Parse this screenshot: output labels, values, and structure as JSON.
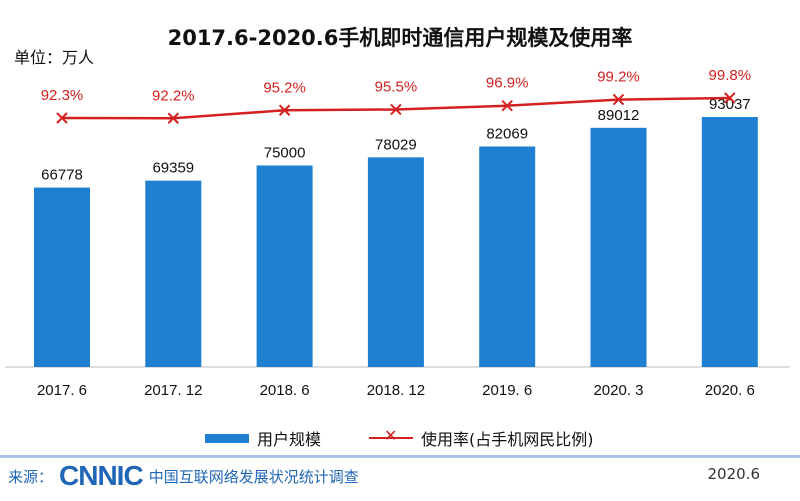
{
  "chart_data": {
    "type": "bar",
    "title": "2017.6-2020.6手机即时通信用户规模及使用率",
    "unit_label": "单位：万人",
    "categories": [
      "2017. 6",
      "2017. 12",
      "2018. 6",
      "2018. 12",
      "2019. 6",
      "2020. 3",
      "2020. 6"
    ],
    "series": [
      {
        "name": "用户规模",
        "type": "bar",
        "values": [
          66778,
          69359,
          75000,
          78029,
          82069,
          89012,
          93037
        ],
        "color": "#1f7fd0"
      },
      {
        "name": "使用率(占手机网民比例)",
        "type": "line",
        "values": [
          92.3,
          92.2,
          95.2,
          95.5,
          96.9,
          99.2,
          99.8
        ],
        "labels": [
          "92.3%",
          "92.2%",
          "95.2%",
          "95.5%",
          "96.9%",
          "99.2%",
          "99.8%"
        ],
        "color": "#d42020"
      }
    ],
    "ylim": [
      0,
      100000
    ],
    "grid": false,
    "legend": "bottom"
  },
  "footer": {
    "source_label": "来源：",
    "logo": "CNNIC",
    "org": "中国互联网络发展状况统计调查",
    "date": "2020.6"
  }
}
